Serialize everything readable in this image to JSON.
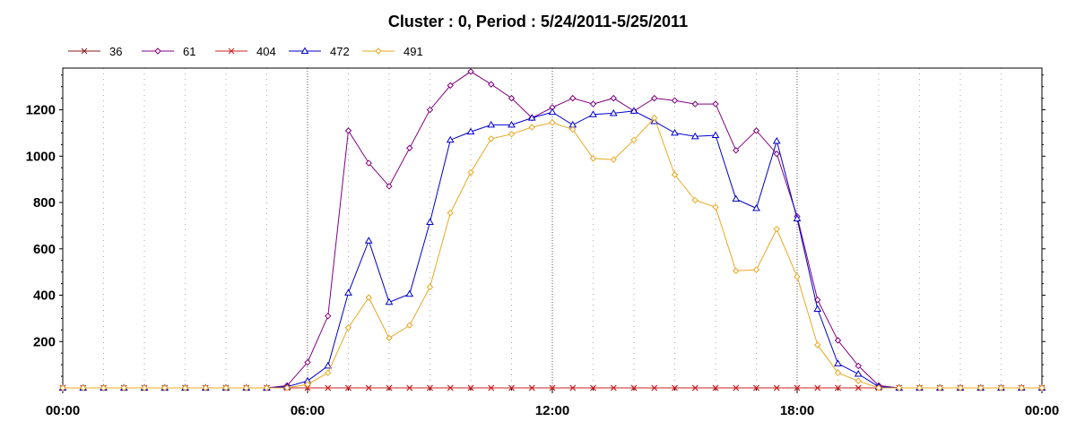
{
  "chart_data": {
    "type": "line",
    "title": "Cluster : 0, Period : 5/24/2011-5/25/2011",
    "xlabel": "",
    "ylabel": "",
    "x_start_hour": 0,
    "x_step_hours": 0.5,
    "xlim_hours": [
      0,
      24
    ],
    "xtick_labels": [
      "00:00",
      "06:00",
      "12:00",
      "18:00",
      "00:00"
    ],
    "ylim": [
      0,
      1380
    ],
    "ytick_values": [
      200,
      400,
      600,
      800,
      1000,
      1200
    ],
    "grid": true,
    "legend_position": "top-left",
    "series": [
      {
        "name": "36",
        "color": "#8b1a1a",
        "marker": "x",
        "values": [
          0,
          0,
          0,
          0,
          0,
          0,
          0,
          0,
          0,
          0,
          0,
          0,
          0,
          0,
          0,
          0,
          0,
          0,
          0,
          0,
          0,
          0,
          0,
          0,
          0,
          0,
          0,
          0,
          0,
          0,
          0,
          0,
          0,
          0,
          0,
          0,
          0,
          0,
          0,
          0,
          0,
          0,
          0,
          0,
          0,
          0,
          0,
          0,
          0
        ]
      },
      {
        "name": "61",
        "color": "#800080",
        "marker": "diamond",
        "values": [
          0,
          0,
          0,
          0,
          0,
          0,
          0,
          0,
          0,
          0,
          0,
          10,
          110,
          310,
          1110,
          970,
          870,
          1035,
          1200,
          1305,
          1365,
          1310,
          1250,
          1165,
          1210,
          1250,
          1225,
          1250,
          1195,
          1250,
          1240,
          1225,
          1225,
          1025,
          1110,
          1010,
          740,
          380,
          205,
          95,
          10,
          0,
          0,
          0,
          0,
          0,
          0,
          0,
          0
        ]
      },
      {
        "name": "404",
        "color": "#cc2222",
        "marker": "x",
        "values": [
          0,
          0,
          0,
          0,
          0,
          0,
          0,
          0,
          0,
          0,
          0,
          0,
          0,
          0,
          0,
          0,
          0,
          0,
          0,
          0,
          0,
          0,
          0,
          0,
          0,
          0,
          0,
          0,
          0,
          0,
          0,
          0,
          0,
          0,
          0,
          0,
          0,
          0,
          0,
          0,
          0,
          0,
          0,
          0,
          0,
          0,
          0,
          0,
          0
        ]
      },
      {
        "name": "472",
        "color": "#0000cc",
        "marker": "triangle",
        "values": [
          0,
          0,
          0,
          0,
          0,
          0,
          0,
          0,
          0,
          0,
          0,
          5,
          30,
          95,
          410,
          635,
          370,
          405,
          715,
          1070,
          1105,
          1135,
          1135,
          1165,
          1190,
          1135,
          1180,
          1185,
          1195,
          1150,
          1100,
          1085,
          1090,
          815,
          775,
          1065,
          730,
          340,
          105,
          60,
          5,
          0,
          0,
          0,
          0,
          0,
          0,
          0,
          0
        ]
      },
      {
        "name": "491",
        "color": "#e8a820",
        "marker": "diamond",
        "values": [
          0,
          0,
          0,
          0,
          0,
          0,
          0,
          0,
          0,
          0,
          0,
          0,
          15,
          65,
          260,
          390,
          215,
          270,
          435,
          755,
          930,
          1075,
          1095,
          1125,
          1145,
          1115,
          990,
          985,
          1070,
          1165,
          920,
          810,
          780,
          505,
          510,
          685,
          480,
          185,
          65,
          30,
          0,
          0,
          0,
          0,
          0,
          0,
          0,
          0,
          0
        ]
      }
    ]
  }
}
